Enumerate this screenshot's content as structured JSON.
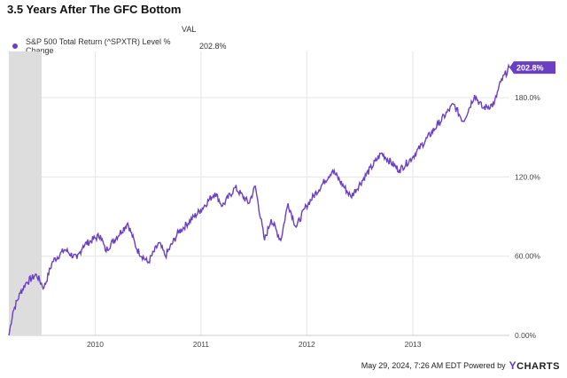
{
  "header": {
    "title": "3.5 Years After The GFC Bottom"
  },
  "legend": {
    "column_header": "VAL",
    "series_name": "S&P 500 Total Return (^SPXTR) Level % Change",
    "series_value": "202.8%"
  },
  "end_label": "202.8%",
  "footer": {
    "text": "May 29, 2024, 7:26 AM EDT Powered by",
    "brand_y": "Y",
    "brand_rest": "CHARTS"
  },
  "colors": {
    "series": "#6a3fc4",
    "shade": "#dddddd",
    "grid": "#e6e6e6",
    "label_bg": "#6a3fc4"
  },
  "chart_data": {
    "type": "line",
    "title": "3.5 Years After The GFC Bottom",
    "xlabel": "",
    "ylabel": "",
    "x_ticks": [
      "2010",
      "2011",
      "2012",
      "2013"
    ],
    "y_ticks": [
      "0.00%",
      "60.00%",
      "120.0%",
      "180.0%"
    ],
    "xlim": [
      "2009-03-09",
      "2013-11-30"
    ],
    "ylim": [
      0,
      215
    ],
    "grid": true,
    "recession_shade": [
      "2009-03-09",
      "2009-06-30"
    ],
    "series": [
      {
        "name": "S&P 500 Total Return (^SPXTR) Level % Change",
        "points": [
          [
            "2009-03-09",
            0
          ],
          [
            "2009-03-23",
            18
          ],
          [
            "2009-04-17",
            32
          ],
          [
            "2009-05-08",
            40
          ],
          [
            "2009-06-12",
            46
          ],
          [
            "2009-07-08",
            36
          ],
          [
            "2009-08-07",
            56
          ],
          [
            "2009-09-18",
            65
          ],
          [
            "2009-10-30",
            58
          ],
          [
            "2009-11-20",
            68
          ],
          [
            "2010-01-19",
            76
          ],
          [
            "2010-02-05",
            64
          ],
          [
            "2010-04-23",
            85
          ],
          [
            "2010-05-25",
            65
          ],
          [
            "2010-07-02",
            55
          ],
          [
            "2010-08-09",
            70
          ],
          [
            "2010-08-31",
            60
          ],
          [
            "2010-10-15",
            78
          ],
          [
            "2010-12-31",
            95
          ],
          [
            "2011-02-18",
            108
          ],
          [
            "2011-03-16",
            98
          ],
          [
            "2011-04-29",
            112
          ],
          [
            "2011-06-15",
            100
          ],
          [
            "2011-07-07",
            113
          ],
          [
            "2011-08-08",
            72
          ],
          [
            "2011-08-31",
            88
          ],
          [
            "2011-10-03",
            72
          ],
          [
            "2011-10-28",
            100
          ],
          [
            "2011-11-25",
            82
          ],
          [
            "2011-12-30",
            98
          ],
          [
            "2012-03-30",
            125
          ],
          [
            "2012-06-01",
            105
          ],
          [
            "2012-09-14",
            138
          ],
          [
            "2012-11-15",
            125
          ],
          [
            "2012-12-31",
            135
          ],
          [
            "2013-03-29",
            160
          ],
          [
            "2013-05-21",
            175
          ],
          [
            "2013-06-24",
            162
          ],
          [
            "2013-08-02",
            182
          ],
          [
            "2013-08-30",
            172
          ],
          [
            "2013-10-08",
            175
          ],
          [
            "2013-10-31",
            192
          ],
          [
            "2013-11-30",
            202.8
          ]
        ]
      }
    ]
  }
}
